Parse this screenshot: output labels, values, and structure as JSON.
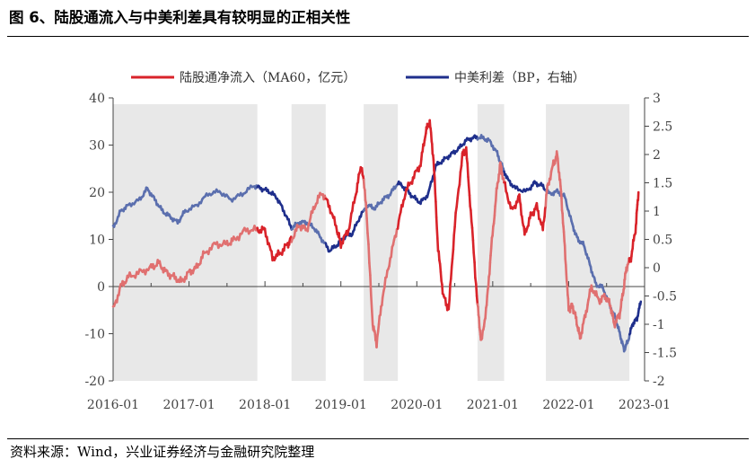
{
  "figure": {
    "title": "图 6、陆股通流入与中美利差具有较明显的正相关性",
    "source": "资料来源：Wind，兴业证券经济与金融研究院整理"
  },
  "colors": {
    "red_dark": "#d9232a",
    "red_light": "#e07070",
    "blue_dark": "#1f2f8c",
    "blue_light": "#5b6fae",
    "shade": "#e8e8e8"
  },
  "chart_data": {
    "type": "line",
    "x_labels": [
      "2016-01",
      "2017-01",
      "2018-01",
      "2019-01",
      "2020-01",
      "2021-01",
      "2022-01",
      "2023-01"
    ],
    "x_range": [
      2016.0,
      2023.0
    ],
    "left_axis": {
      "ylim": [
        -20,
        40
      ],
      "ticks": [
        -20,
        -10,
        0,
        10,
        20,
        30,
        40
      ]
    },
    "right_axis": {
      "ylim": [
        -2,
        3
      ],
      "ticks": [
        "-2",
        "-1.5",
        "-1",
        "-0.5",
        "0",
        "0.5",
        "1",
        "1.5",
        "2",
        "2.5",
        "3"
      ]
    },
    "shaded_periods": [
      [
        2016.0,
        2017.9
      ],
      [
        2018.35,
        2018.8
      ],
      [
        2019.3,
        2019.75
      ],
      [
        2020.8,
        2021.15
      ],
      [
        2021.7,
        2022.8
      ]
    ],
    "series": [
      {
        "name": "陆股通净流入（MA60，亿元）",
        "axis": "left",
        "points": [
          [
            2016.0,
            -5
          ],
          [
            2016.1,
            0
          ],
          [
            2016.2,
            2
          ],
          [
            2016.35,
            3
          ],
          [
            2016.5,
            4
          ],
          [
            2016.6,
            5
          ],
          [
            2016.7,
            3
          ],
          [
            2016.8,
            2
          ],
          [
            2016.9,
            1
          ],
          [
            2017.0,
            3
          ],
          [
            2017.1,
            4
          ],
          [
            2017.2,
            7
          ],
          [
            2017.35,
            9
          ],
          [
            2017.5,
            9
          ],
          [
            2017.6,
            10
          ],
          [
            2017.75,
            12
          ],
          [
            2017.9,
            12
          ],
          [
            2018.0,
            12
          ],
          [
            2018.1,
            6
          ],
          [
            2018.2,
            7
          ],
          [
            2018.3,
            9
          ],
          [
            2018.35,
            10
          ],
          [
            2018.45,
            13
          ],
          [
            2018.55,
            12
          ],
          [
            2018.65,
            17
          ],
          [
            2018.75,
            20
          ],
          [
            2018.85,
            17
          ],
          [
            2018.95,
            12
          ],
          [
            2019.0,
            9
          ],
          [
            2019.1,
            12
          ],
          [
            2019.2,
            20
          ],
          [
            2019.27,
            26
          ],
          [
            2019.33,
            18
          ],
          [
            2019.42,
            -8
          ],
          [
            2019.47,
            -12
          ],
          [
            2019.55,
            -2
          ],
          [
            2019.65,
            6
          ],
          [
            2019.75,
            13
          ],
          [
            2019.85,
            20
          ],
          [
            2019.95,
            23
          ],
          [
            2020.05,
            26
          ],
          [
            2020.12,
            33
          ],
          [
            2020.17,
            35
          ],
          [
            2020.22,
            27
          ],
          [
            2020.28,
            8
          ],
          [
            2020.35,
            -2
          ],
          [
            2020.42,
            -5
          ],
          [
            2020.5,
            13
          ],
          [
            2020.6,
            28
          ],
          [
            2020.65,
            29
          ],
          [
            2020.72,
            14
          ],
          [
            2020.8,
            -4
          ],
          [
            2020.85,
            -12
          ],
          [
            2020.92,
            -4
          ],
          [
            2020.98,
            8
          ],
          [
            2021.05,
            20
          ],
          [
            2021.1,
            26
          ],
          [
            2021.15,
            22
          ],
          [
            2021.25,
            16
          ],
          [
            2021.35,
            19
          ],
          [
            2021.42,
            11
          ],
          [
            2021.5,
            15
          ],
          [
            2021.58,
            17
          ],
          [
            2021.66,
            12
          ],
          [
            2021.72,
            21
          ],
          [
            2021.8,
            26
          ],
          [
            2021.85,
            28
          ],
          [
            2021.9,
            20
          ],
          [
            2021.95,
            8
          ],
          [
            2022.0,
            -5
          ],
          [
            2022.05,
            -4
          ],
          [
            2022.1,
            -7
          ],
          [
            2022.15,
            -11
          ],
          [
            2022.22,
            -6
          ],
          [
            2022.3,
            0
          ],
          [
            2022.4,
            -3
          ],
          [
            2022.48,
            -2
          ],
          [
            2022.55,
            -4
          ],
          [
            2022.6,
            -8
          ],
          [
            2022.67,
            -6
          ],
          [
            2022.72,
            -1
          ],
          [
            2022.76,
            4
          ],
          [
            2022.82,
            6
          ],
          [
            2022.88,
            12
          ],
          [
            2022.92,
            20
          ]
        ]
      },
      {
        "name": "中美利差（BP，右轴）",
        "axis": "right",
        "points": [
          [
            2016.0,
            0.7
          ],
          [
            2016.1,
            1.0
          ],
          [
            2016.2,
            1.1
          ],
          [
            2016.35,
            1.2
          ],
          [
            2016.45,
            1.4
          ],
          [
            2016.55,
            1.2
          ],
          [
            2016.65,
            1.0
          ],
          [
            2016.75,
            0.9
          ],
          [
            2016.85,
            0.8
          ],
          [
            2016.95,
            1.0
          ],
          [
            2017.1,
            1.1
          ],
          [
            2017.25,
            1.3
          ],
          [
            2017.4,
            1.35
          ],
          [
            2017.55,
            1.2
          ],
          [
            2017.7,
            1.3
          ],
          [
            2017.85,
            1.45
          ],
          [
            2017.95,
            1.4
          ],
          [
            2018.05,
            1.35
          ],
          [
            2018.15,
            1.25
          ],
          [
            2018.25,
            1.0
          ],
          [
            2018.35,
            0.7
          ],
          [
            2018.45,
            0.8
          ],
          [
            2018.55,
            0.8
          ],
          [
            2018.65,
            0.7
          ],
          [
            2018.75,
            0.5
          ],
          [
            2018.85,
            0.3
          ],
          [
            2018.95,
            0.4
          ],
          [
            2019.05,
            0.55
          ],
          [
            2019.15,
            0.6
          ],
          [
            2019.25,
            0.9
          ],
          [
            2019.35,
            1.1
          ],
          [
            2019.45,
            1.05
          ],
          [
            2019.55,
            1.2
          ],
          [
            2019.65,
            1.3
          ],
          [
            2019.75,
            1.5
          ],
          [
            2019.85,
            1.4
          ],
          [
            2019.95,
            1.25
          ],
          [
            2020.05,
            1.15
          ],
          [
            2020.15,
            1.3
          ],
          [
            2020.25,
            1.8
          ],
          [
            2020.35,
            1.9
          ],
          [
            2020.45,
            2.0
          ],
          [
            2020.55,
            2.1
          ],
          [
            2020.65,
            2.25
          ],
          [
            2020.75,
            2.3
          ],
          [
            2020.85,
            2.3
          ],
          [
            2020.95,
            2.25
          ],
          [
            2021.05,
            2.05
          ],
          [
            2021.12,
            1.8
          ],
          [
            2021.2,
            1.55
          ],
          [
            2021.3,
            1.4
          ],
          [
            2021.45,
            1.35
          ],
          [
            2021.55,
            1.5
          ],
          [
            2021.65,
            1.45
          ],
          [
            2021.75,
            1.3
          ],
          [
            2021.85,
            1.35
          ],
          [
            2021.95,
            1.25
          ],
          [
            2022.05,
            0.75
          ],
          [
            2022.12,
            0.5
          ],
          [
            2022.2,
            0.4
          ],
          [
            2022.28,
            0.05
          ],
          [
            2022.36,
            -0.3
          ],
          [
            2022.45,
            -0.35
          ],
          [
            2022.55,
            -0.7
          ],
          [
            2022.62,
            -0.9
          ],
          [
            2022.68,
            -1.2
          ],
          [
            2022.73,
            -1.45
          ],
          [
            2022.78,
            -1.3
          ],
          [
            2022.84,
            -1.0
          ],
          [
            2022.9,
            -0.9
          ],
          [
            2022.95,
            -0.6
          ]
        ]
      }
    ]
  }
}
